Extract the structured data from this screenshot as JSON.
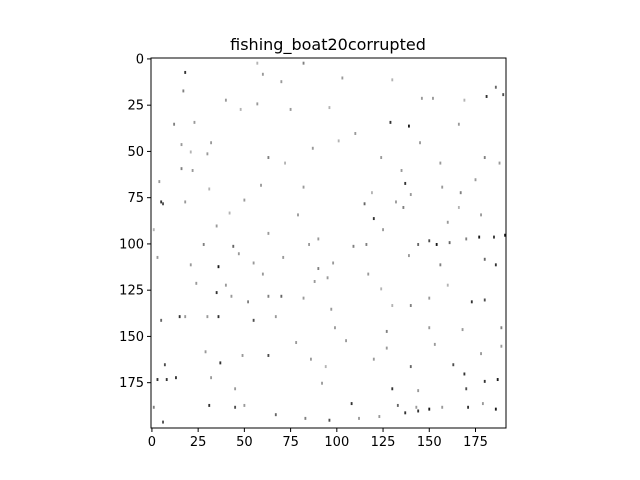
{
  "chart_data": {
    "type": "heatmap",
    "title": "fishing_boat20corrupted",
    "xlabel": "",
    "ylabel": "",
    "image_width": 192,
    "image_height": 200,
    "x_ticks": [
      0,
      25,
      50,
      75,
      100,
      125,
      150,
      175
    ],
    "y_ticks": [
      0,
      25,
      50,
      75,
      100,
      125,
      150,
      175
    ],
    "x_tick_labels": [
      "0",
      "25",
      "50",
      "75",
      "100",
      "125",
      "150",
      "175"
    ],
    "y_tick_labels": [
      "0",
      "25",
      "50",
      "75",
      "100",
      "125",
      "150",
      "175"
    ],
    "xlim": [
      -0.5,
      191.5
    ],
    "ylim": [
      199.5,
      -0.5
    ],
    "colormap": "gray",
    "background_value": 1.0,
    "pixels": [
      [
        18,
        7,
        0.2
      ],
      [
        57,
        2,
        0.7
      ],
      [
        60,
        8,
        0.6
      ],
      [
        82,
        2,
        0.5
      ],
      [
        103,
        10,
        0.6
      ],
      [
        130,
        11,
        0.7
      ],
      [
        146,
        21,
        0.6
      ],
      [
        152,
        21,
        0.6
      ],
      [
        181,
        20,
        0.2
      ],
      [
        190,
        19,
        0.3
      ],
      [
        186,
        15,
        0.4
      ],
      [
        169,
        22,
        0.7
      ],
      [
        17,
        17,
        0.5
      ],
      [
        40,
        22,
        0.6
      ],
      [
        75,
        27,
        0.6
      ],
      [
        96,
        26,
        0.7
      ],
      [
        129,
        34,
        0.2
      ],
      [
        139,
        36,
        0.1
      ],
      [
        166,
        35,
        0.6
      ],
      [
        12,
        35,
        0.5
      ],
      [
        23,
        34,
        0.6
      ],
      [
        32,
        45,
        0.6
      ],
      [
        48,
        27,
        0.7
      ],
      [
        57,
        24,
        0.6
      ],
      [
        16,
        46,
        0.6
      ],
      [
        21,
        50,
        0.7
      ],
      [
        30,
        51,
        0.6
      ],
      [
        63,
        53,
        0.5
      ],
      [
        87,
        48,
        0.6
      ],
      [
        101,
        44,
        0.7
      ],
      [
        124,
        53,
        0.6
      ],
      [
        156,
        56,
        0.6
      ],
      [
        180,
        53,
        0.5
      ],
      [
        188,
        56,
        0.6
      ],
      [
        16,
        59,
        0.5
      ],
      [
        22,
        60,
        0.6
      ],
      [
        4,
        66,
        0.6
      ],
      [
        31,
        70,
        0.7
      ],
      [
        59,
        68,
        0.6
      ],
      [
        82,
        69,
        0.6
      ],
      [
        119,
        72,
        0.7
      ],
      [
        137,
        67,
        0.2
      ],
      [
        140,
        73,
        0.6
      ],
      [
        157,
        69,
        0.6
      ],
      [
        167,
        72,
        0.5
      ],
      [
        5,
        77,
        0.2
      ],
      [
        6,
        78,
        0.3
      ],
      [
        18,
        77,
        0.6
      ],
      [
        42,
        83,
        0.7
      ],
      [
        50,
        76,
        0.6
      ],
      [
        79,
        84,
        0.6
      ],
      [
        115,
        78,
        0.4
      ],
      [
        132,
        77,
        0.6
      ],
      [
        136,
        80,
        0.5
      ],
      [
        166,
        80,
        0.7
      ],
      [
        178,
        84,
        0.6
      ],
      [
        1,
        92,
        0.7
      ],
      [
        44,
        101,
        0.4
      ],
      [
        63,
        94,
        0.6
      ],
      [
        90,
        97,
        0.6
      ],
      [
        109,
        101,
        0.5
      ],
      [
        120,
        86,
        0.2
      ],
      [
        144,
        100,
        0.4
      ],
      [
        150,
        98,
        0.3
      ],
      [
        154,
        100,
        0.1
      ],
      [
        161,
        99,
        0.4
      ],
      [
        170,
        97,
        0.5
      ],
      [
        177,
        96,
        0.1
      ],
      [
        185,
        96,
        0.2
      ],
      [
        191,
        95,
        0.1
      ],
      [
        3,
        107,
        0.6
      ],
      [
        21,
        111,
        0.6
      ],
      [
        36,
        112,
        0.1
      ],
      [
        47,
        105,
        0.6
      ],
      [
        71,
        107,
        0.6
      ],
      [
        90,
        113,
        0.5
      ],
      [
        98,
        110,
        0.6
      ],
      [
        139,
        106,
        0.6
      ],
      [
        156,
        111,
        0.5
      ],
      [
        180,
        108,
        0.4
      ],
      [
        186,
        111,
        0.2
      ],
      [
        24,
        121,
        0.6
      ],
      [
        40,
        122,
        0.6
      ],
      [
        60,
        116,
        0.6
      ],
      [
        88,
        120,
        0.6
      ],
      [
        117,
        116,
        0.6
      ],
      [
        124,
        124,
        0.7
      ],
      [
        18,
        139,
        0.6
      ],
      [
        35,
        126,
        0.2
      ],
      [
        43,
        128,
        0.6
      ],
      [
        52,
        131,
        0.5
      ],
      [
        63,
        128,
        0.5
      ],
      [
        70,
        128,
        0.4
      ],
      [
        82,
        129,
        0.6
      ],
      [
        97,
        135,
        0.6
      ],
      [
        130,
        133,
        0.7
      ],
      [
        140,
        133,
        0.5
      ],
      [
        150,
        129,
        0.6
      ],
      [
        173,
        131,
        0.2
      ],
      [
        180,
        130,
        0.3
      ],
      [
        5,
        141,
        0.4
      ],
      [
        15,
        139,
        0.2
      ],
      [
        30,
        139,
        0.6
      ],
      [
        36,
        139,
        0.2
      ],
      [
        55,
        141,
        0.3
      ],
      [
        67,
        139,
        0.6
      ],
      [
        99,
        145,
        0.6
      ],
      [
        127,
        147,
        0.5
      ],
      [
        168,
        146,
        0.6
      ],
      [
        189,
        145,
        0.5
      ],
      [
        7,
        165,
        0.3
      ],
      [
        29,
        158,
        0.6
      ],
      [
        37,
        164,
        0.2
      ],
      [
        49,
        160,
        0.6
      ],
      [
        63,
        160,
        0.3
      ],
      [
        86,
        162,
        0.6
      ],
      [
        94,
        166,
        0.7
      ],
      [
        127,
        156,
        0.6
      ],
      [
        140,
        166,
        0.4
      ],
      [
        153,
        154,
        0.6
      ],
      [
        163,
        165,
        0.3
      ],
      [
        169,
        170,
        0.2
      ],
      [
        178,
        159,
        0.6
      ],
      [
        189,
        155,
        0.6
      ],
      [
        3,
        173,
        0.2
      ],
      [
        8,
        173,
        0.2
      ],
      [
        13,
        172,
        0.2
      ],
      [
        32,
        172,
        0.6
      ],
      [
        45,
        178,
        0.6
      ],
      [
        92,
        175,
        0.6
      ],
      [
        130,
        178,
        0.2
      ],
      [
        144,
        179,
        0.6
      ],
      [
        170,
        178,
        0.3
      ],
      [
        180,
        174,
        0.2
      ],
      [
        187,
        173,
        0.1
      ],
      [
        1,
        188,
        0.5
      ],
      [
        6,
        196,
        0.3
      ],
      [
        31,
        187,
        0.2
      ],
      [
        45,
        188,
        0.3
      ],
      [
        50,
        187,
        0.6
      ],
      [
        67,
        192,
        0.4
      ],
      [
        83,
        194,
        0.5
      ],
      [
        96,
        195,
        0.3
      ],
      [
        108,
        186,
        0.2
      ],
      [
        112,
        194,
        0.6
      ],
      [
        123,
        193,
        0.6
      ],
      [
        133,
        187,
        0.4
      ],
      [
        137,
        191,
        0.2
      ],
      [
        143,
        188,
        0.6
      ],
      [
        144,
        190,
        0.2
      ],
      [
        150,
        189,
        0.1
      ],
      [
        157,
        188,
        0.6
      ],
      [
        171,
        188,
        0.2
      ],
      [
        179,
        186,
        0.6
      ],
      [
        186,
        189,
        0.1
      ],
      [
        70,
        12,
        0.6
      ],
      [
        72,
        56,
        0.7
      ],
      [
        110,
        40,
        0.6
      ],
      [
        116,
        100,
        0.5
      ],
      [
        125,
        92,
        0.6
      ],
      [
        85,
        100,
        0.6
      ],
      [
        35,
        90,
        0.6
      ],
      [
        28,
        100,
        0.5
      ],
      [
        150,
        145,
        0.6
      ],
      [
        160,
        122,
        0.7
      ],
      [
        120,
        162,
        0.6
      ],
      [
        105,
        152,
        0.6
      ],
      [
        78,
        153,
        0.6
      ],
      [
        55,
        110,
        0.6
      ],
      [
        95,
        118,
        0.6
      ],
      [
        135,
        60,
        0.6
      ],
      [
        145,
        45,
        0.6
      ],
      [
        175,
        65,
        0.6
      ],
      [
        160,
        88,
        0.6
      ]
    ]
  }
}
